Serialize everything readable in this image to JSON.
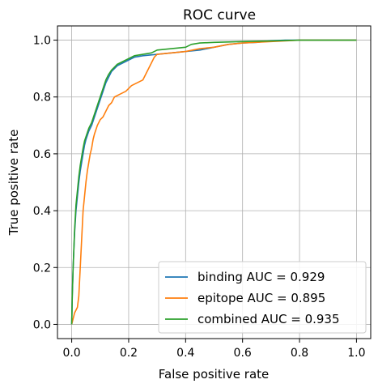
{
  "chart_data": {
    "type": "line",
    "title": "ROC curve",
    "xlabel": "False positive rate",
    "ylabel": "True positive rate",
    "xlim": [
      -0.05,
      1.05
    ],
    "ylim": [
      -0.05,
      1.05
    ],
    "xticks": [
      0.0,
      0.2,
      0.4,
      0.6,
      0.8,
      1.0
    ],
    "yticks": [
      0.0,
      0.2,
      0.4,
      0.6,
      0.8,
      1.0
    ],
    "xtick_labels": [
      "0.0",
      "0.2",
      "0.4",
      "0.6",
      "0.8",
      "1.0"
    ],
    "ytick_labels": [
      "0.0",
      "0.2",
      "0.4",
      "0.6",
      "0.8",
      "1.0"
    ],
    "grid": true,
    "legend_position": "lower-right",
    "series": [
      {
        "name": "binding AUC = 0.929",
        "color": "#1f77b4",
        "points": [
          [
            0.0,
            0.0
          ],
          [
            0.002,
            0.1
          ],
          [
            0.005,
            0.2
          ],
          [
            0.01,
            0.32
          ],
          [
            0.015,
            0.4
          ],
          [
            0.02,
            0.45
          ],
          [
            0.025,
            0.5
          ],
          [
            0.03,
            0.54
          ],
          [
            0.035,
            0.57
          ],
          [
            0.04,
            0.6
          ],
          [
            0.045,
            0.63
          ],
          [
            0.05,
            0.65
          ],
          [
            0.06,
            0.68
          ],
          [
            0.07,
            0.7
          ],
          [
            0.08,
            0.73
          ],
          [
            0.09,
            0.76
          ],
          [
            0.1,
            0.79
          ],
          [
            0.11,
            0.82
          ],
          [
            0.12,
            0.85
          ],
          [
            0.13,
            0.87
          ],
          [
            0.14,
            0.89
          ],
          [
            0.15,
            0.9
          ],
          [
            0.16,
            0.91
          ],
          [
            0.18,
            0.92
          ],
          [
            0.2,
            0.93
          ],
          [
            0.22,
            0.94
          ],
          [
            0.25,
            0.945
          ],
          [
            0.3,
            0.95
          ],
          [
            0.35,
            0.955
          ],
          [
            0.4,
            0.96
          ],
          [
            0.45,
            0.965
          ],
          [
            0.5,
            0.975
          ],
          [
            0.55,
            0.985
          ],
          [
            0.6,
            0.99
          ],
          [
            0.65,
            0.992
          ],
          [
            0.7,
            0.998
          ],
          [
            0.75,
            1.0
          ],
          [
            0.8,
            1.0
          ],
          [
            0.9,
            1.0
          ],
          [
            1.0,
            1.0
          ]
        ]
      },
      {
        "name": "epitope AUC = 0.895",
        "color": "#ff7f0e",
        "points": [
          [
            0.0,
            0.0
          ],
          [
            0.005,
            0.02
          ],
          [
            0.01,
            0.04
          ],
          [
            0.02,
            0.06
          ],
          [
            0.025,
            0.1
          ],
          [
            0.03,
            0.2
          ],
          [
            0.035,
            0.3
          ],
          [
            0.04,
            0.4
          ],
          [
            0.045,
            0.45
          ],
          [
            0.05,
            0.5
          ],
          [
            0.055,
            0.54
          ],
          [
            0.06,
            0.57
          ],
          [
            0.065,
            0.6
          ],
          [
            0.07,
            0.62
          ],
          [
            0.075,
            0.65
          ],
          [
            0.08,
            0.67
          ],
          [
            0.09,
            0.7
          ],
          [
            0.1,
            0.72
          ],
          [
            0.11,
            0.73
          ],
          [
            0.12,
            0.75
          ],
          [
            0.13,
            0.77
          ],
          [
            0.14,
            0.78
          ],
          [
            0.15,
            0.8
          ],
          [
            0.17,
            0.81
          ],
          [
            0.19,
            0.82
          ],
          [
            0.21,
            0.84
          ],
          [
            0.23,
            0.85
          ],
          [
            0.25,
            0.86
          ],
          [
            0.26,
            0.88
          ],
          [
            0.27,
            0.9
          ],
          [
            0.28,
            0.92
          ],
          [
            0.29,
            0.94
          ],
          [
            0.3,
            0.95
          ],
          [
            0.35,
            0.955
          ],
          [
            0.4,
            0.96
          ],
          [
            0.45,
            0.97
          ],
          [
            0.5,
            0.975
          ],
          [
            0.55,
            0.985
          ],
          [
            0.6,
            0.99
          ],
          [
            0.7,
            0.995
          ],
          [
            0.8,
            1.0
          ],
          [
            0.9,
            1.0
          ],
          [
            1.0,
            1.0
          ]
        ]
      },
      {
        "name": "combined AUC = 0.935",
        "color": "#2ca02c",
        "points": [
          [
            0.0,
            0.0
          ],
          [
            0.002,
            0.1
          ],
          [
            0.005,
            0.2
          ],
          [
            0.01,
            0.33
          ],
          [
            0.015,
            0.42
          ],
          [
            0.02,
            0.47
          ],
          [
            0.025,
            0.52
          ],
          [
            0.03,
            0.56
          ],
          [
            0.035,
            0.59
          ],
          [
            0.04,
            0.62
          ],
          [
            0.045,
            0.645
          ],
          [
            0.05,
            0.66
          ],
          [
            0.06,
            0.69
          ],
          [
            0.07,
            0.71
          ],
          [
            0.08,
            0.74
          ],
          [
            0.09,
            0.77
          ],
          [
            0.1,
            0.8
          ],
          [
            0.11,
            0.83
          ],
          [
            0.12,
            0.86
          ],
          [
            0.13,
            0.88
          ],
          [
            0.14,
            0.895
          ],
          [
            0.15,
            0.905
          ],
          [
            0.16,
            0.915
          ],
          [
            0.18,
            0.925
          ],
          [
            0.2,
            0.935
          ],
          [
            0.22,
            0.945
          ],
          [
            0.25,
            0.95
          ],
          [
            0.28,
            0.955
          ],
          [
            0.3,
            0.965
          ],
          [
            0.35,
            0.97
          ],
          [
            0.4,
            0.975
          ],
          [
            0.42,
            0.985
          ],
          [
            0.45,
            0.99
          ],
          [
            0.5,
            0.992
          ],
          [
            0.6,
            0.995
          ],
          [
            0.7,
            0.997
          ],
          [
            0.8,
            1.0
          ],
          [
            0.9,
            1.0
          ],
          [
            1.0,
            1.0
          ]
        ]
      }
    ]
  }
}
